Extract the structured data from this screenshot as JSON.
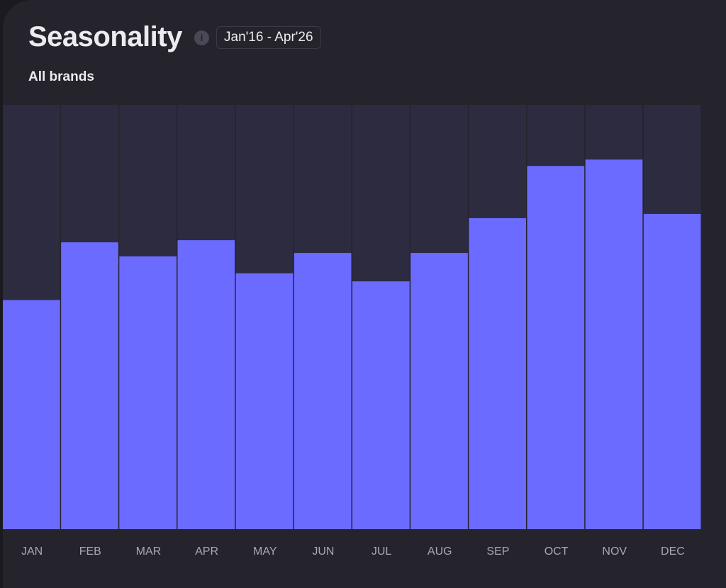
{
  "header": {
    "title": "Seasonality",
    "info_icon": "info-icon",
    "date_range": "Jan'16 - Apr'26",
    "subtitle": "All brands"
  },
  "colors": {
    "bar": "#6b6bff",
    "track": "#2c2b40",
    "background": "#25232c",
    "label": "#a9a8b3"
  },
  "chart_data": {
    "type": "bar",
    "categories": [
      "JAN",
      "FEB",
      "MAR",
      "APR",
      "MAY",
      "JUN",
      "JUL",
      "AUG",
      "SEP",
      "OCT",
      "NOV",
      "DEC"
    ],
    "values": [
      0.54,
      0.676,
      0.643,
      0.681,
      0.603,
      0.651,
      0.584,
      0.651,
      0.733,
      0.856,
      0.871,
      0.743
    ],
    "ylim": [
      0,
      1
    ],
    "grid": false,
    "title": "",
    "xlabel": "",
    "ylabel": ""
  }
}
